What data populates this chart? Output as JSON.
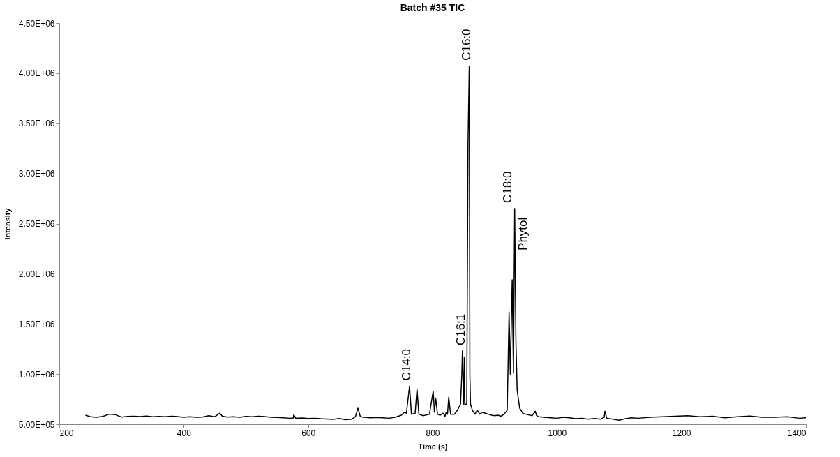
{
  "chart_data": {
    "type": "line",
    "title": "Batch #35 TIC",
    "xlabel": "Time (s)",
    "ylabel": "Intensity",
    "x": [
      242,
      250,
      260,
      270,
      280,
      290,
      300,
      310,
      320,
      330,
      340,
      350,
      360,
      370,
      380,
      390,
      400,
      410,
      420,
      430,
      440,
      450,
      458,
      462,
      470,
      480,
      490,
      500,
      510,
      520,
      530,
      540,
      550,
      560,
      570,
      576,
      577,
      580,
      590,
      600,
      610,
      620,
      630,
      640,
      650,
      660,
      670,
      676,
      680,
      684,
      690,
      700,
      710,
      720,
      730,
      740,
      750,
      755,
      758,
      763,
      766,
      772,
      775,
      778,
      785,
      795,
      801,
      803,
      805,
      808,
      812,
      817,
      820,
      822,
      824,
      826,
      829,
      835,
      840,
      845,
      847,
      848,
      850,
      851,
      852,
      855,
      857,
      859,
      860,
      861,
      864,
      868,
      872,
      876,
      880,
      885,
      890,
      895,
      900,
      905,
      910,
      915,
      920,
      923,
      925,
      928,
      930,
      932,
      934,
      936,
      940,
      945,
      950,
      960,
      965,
      967,
      970,
      980,
      990,
      1000,
      1010,
      1020,
      1030,
      1040,
      1050,
      1060,
      1070,
      1076,
      1077,
      1080,
      1090,
      1100,
      1110,
      1120,
      1130,
      1150,
      1170,
      1190,
      1210,
      1230,
      1250,
      1270,
      1290,
      1310,
      1330,
      1350,
      1370,
      1390,
      1400
    ],
    "series": [
      {
        "color": "#000000",
        "values": [
          590000,
          575000,
          570000,
          578000,
          600000,
          595000,
          572000,
          578000,
          580000,
          576000,
          582000,
          574000,
          578000,
          575000,
          580000,
          576000,
          570000,
          575000,
          570000,
          572000,
          585000,
          575000,
          610000,
          580000,
          572000,
          575000,
          570000,
          578000,
          575000,
          580000,
          576000,
          570000,
          568000,
          565000,
          560000,
          562000,
          595000,
          560000,
          562000,
          558000,
          560000,
          555000,
          552000,
          548000,
          558000,
          545000,
          550000,
          575000,
          660000,
          575000,
          570000,
          565000,
          568000,
          565000,
          560000,
          570000,
          590000,
          620000,
          610000,
          880000,
          600000,
          610000,
          850000,
          600000,
          585000,
          600000,
          830000,
          620000,
          760000,
          600000,
          590000,
          610000,
          580000,
          620000,
          600000,
          770000,
          600000,
          600000,
          640000,
          700000,
          990000,
          1230000,
          700000,
          1170000,
          700000,
          700000,
          3300000,
          4070000,
          990000,
          700000,
          640000,
          600000,
          640000,
          600000,
          620000,
          610000,
          600000,
          590000,
          585000,
          590000,
          580000,
          600000,
          640000,
          1620000,
          1000000,
          1940000,
          1010000,
          2650000,
          1320000,
          840000,
          660000,
          610000,
          600000,
          585000,
          630000,
          590000,
          575000,
          570000,
          565000,
          560000,
          570000,
          565000,
          555000,
          560000,
          550000,
          558000,
          550000,
          570000,
          630000,
          560000,
          550000,
          540000,
          555000,
          565000,
          560000,
          570000,
          575000,
          580000,
          585000,
          575000,
          580000,
          565000,
          575000,
          582000,
          570000,
          570000,
          575000,
          560000,
          565000
        ]
      }
    ],
    "xlim": [
      200,
      1400
    ],
    "xticks": [
      200,
      400,
      600,
      800,
      1000,
      1200,
      1400
    ],
    "ylim": [
      500000,
      4500000
    ],
    "yticks": [
      {
        "value": 500000,
        "label": "5.00E+05"
      },
      {
        "value": 1000000,
        "label": "1.00E+06"
      },
      {
        "value": 1500000,
        "label": "1.50E+06"
      },
      {
        "value": 2000000,
        "label": "2.00E+06"
      },
      {
        "value": 2500000,
        "label": "2.50E+06"
      },
      {
        "value": 3000000,
        "label": "3.00E+06"
      },
      {
        "value": 3500000,
        "label": "3.50E+06"
      },
      {
        "value": 4000000,
        "label": "4.00E+06"
      },
      {
        "value": 4500000,
        "label": "4.50E+06"
      }
    ],
    "annotations": [
      {
        "text": "C14:0",
        "x": 763,
        "y": 880000
      },
      {
        "text": "C16:1",
        "x": 850,
        "y": 1230000
      },
      {
        "text": "C16:0",
        "x": 859,
        "y": 4070000
      },
      {
        "text": "C18:0",
        "x": 932,
        "y": 2650000
      },
      {
        "text": "Phytol",
        "x": 932,
        "y": 2650000
      }
    ],
    "grid": false,
    "legend": false,
    "marker": "none",
    "line_style": "solid"
  }
}
